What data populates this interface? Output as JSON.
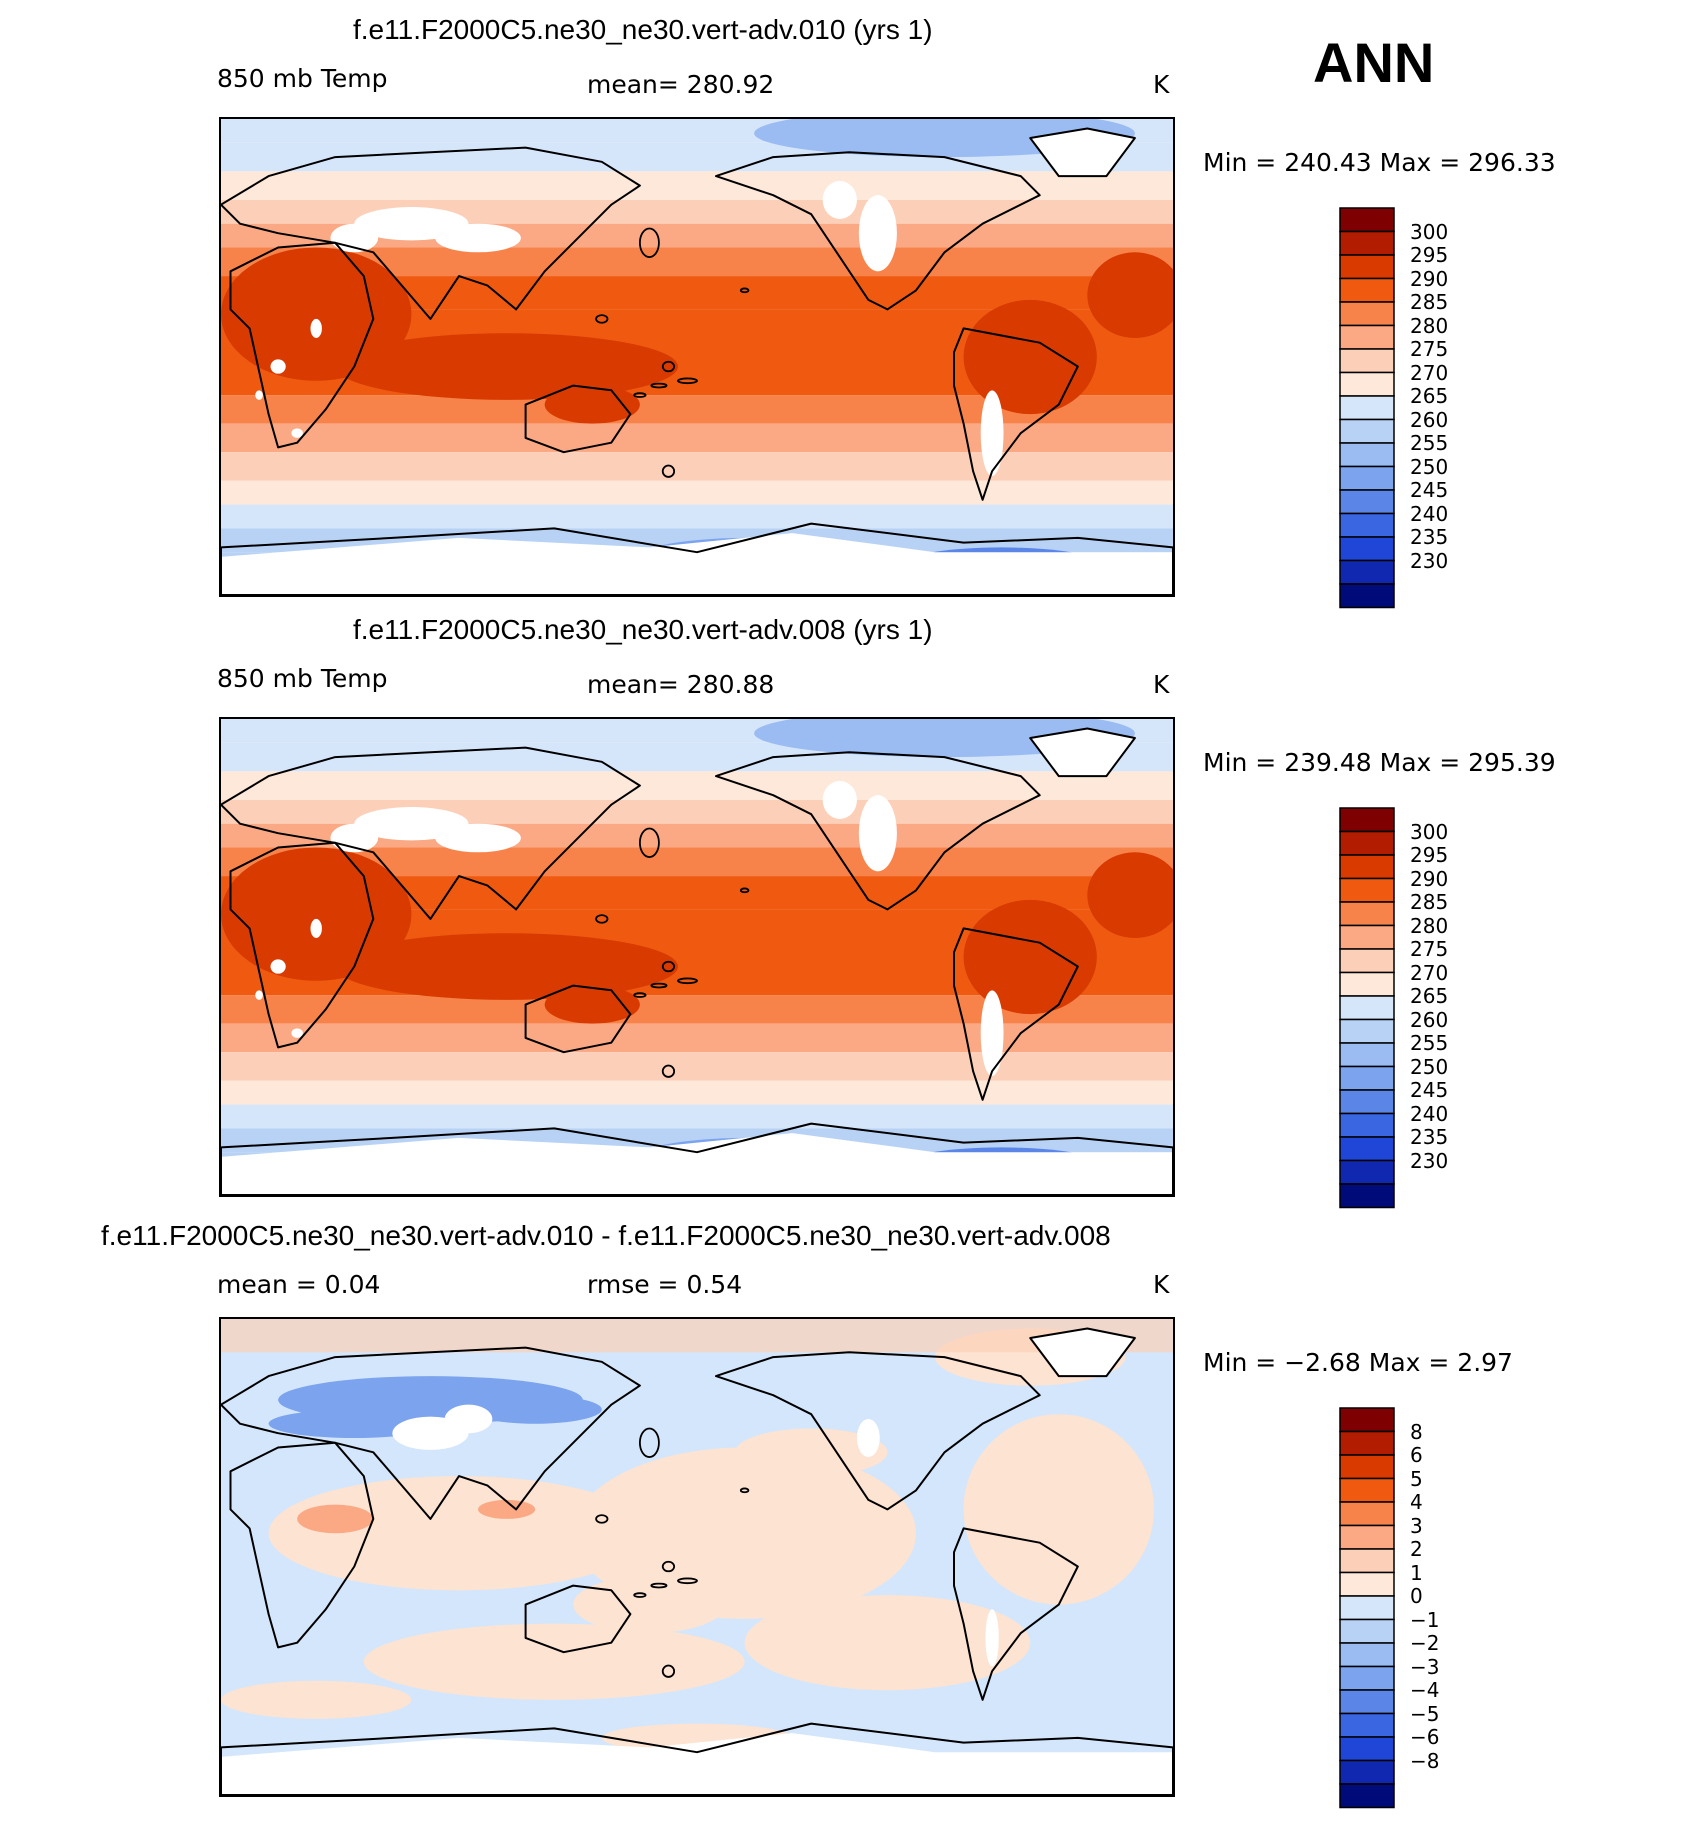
{
  "season": "ANN",
  "panels": [
    {
      "title": "f.e11.F2000C5.ne30_ne30.vert-adv.010 (yrs 1)",
      "variable": "850 mb Temp",
      "stat": "mean=  280.92",
      "units": "K",
      "minmax": "Min  =  240.43  Max  =  296.33",
      "colorbar_labels": [
        "300",
        "295",
        "290",
        "285",
        "280",
        "275",
        "270",
        "265",
        "260",
        "255",
        "250",
        "245",
        "240",
        "235",
        "230"
      ]
    },
    {
      "title": "f.e11.F2000C5.ne30_ne30.vert-adv.008 (yrs 1)",
      "variable": "850 mb Temp",
      "stat": "mean=  280.88",
      "units": "K",
      "minmax": "Min  =  239.48  Max  =  295.39",
      "colorbar_labels": [
        "300",
        "295",
        "290",
        "285",
        "280",
        "275",
        "270",
        "265",
        "260",
        "255",
        "250",
        "245",
        "240",
        "235",
        "230"
      ]
    },
    {
      "title": "f.e11.F2000C5.ne30_ne30.vert-adv.010 - f.e11.F2000C5.ne30_ne30.vert-adv.008",
      "variable": "mean =     0.04",
      "stat": "rmse =     0.54",
      "units": "K",
      "minmax": "Min  =     −2.68  Max  =      2.97",
      "colorbar_labels": [
        "8",
        "6",
        "5",
        "4",
        "3",
        "2",
        "1",
        "0",
        "−1",
        "−2",
        "−3",
        "−4",
        "−5",
        "−6",
        "−8"
      ]
    }
  ],
  "colors": {
    "scale": [
      "#7f0000",
      "#b21c00",
      "#d93a00",
      "#f05a10",
      "#f7834a",
      "#fba985",
      "#fcd0b8",
      "#fde8da",
      "#d6e6fa",
      "#b8d2f5",
      "#9bbcf2",
      "#7ba3ee",
      "#5b86e8",
      "#3a66e2",
      "#1f46d6",
      "#1028b0",
      "#000b7a"
    ],
    "diff_land": "#fde3d2",
    "diff_ocean": "#d4e6fb"
  }
}
